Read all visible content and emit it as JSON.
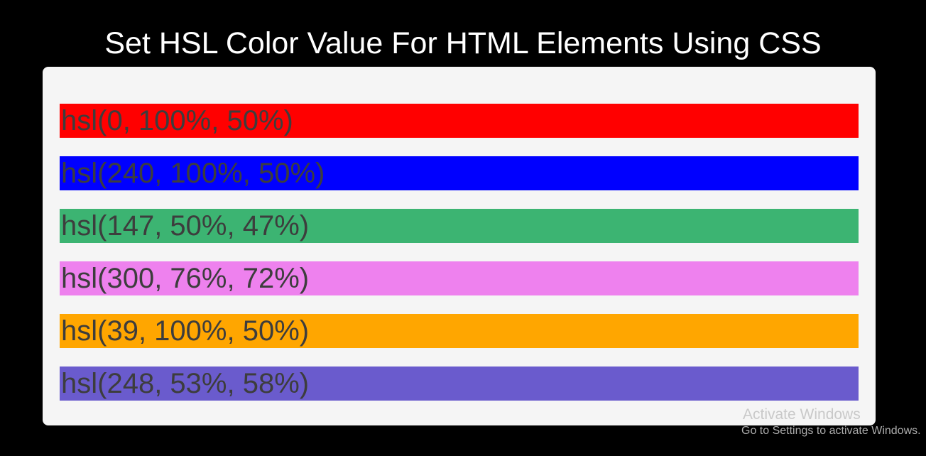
{
  "title": "Set HSL Color Value For HTML Elements Using CSS",
  "bars": [
    {
      "label": "hsl(0, 100%, 50%)",
      "color": "hsl(0, 100%, 50%)"
    },
    {
      "label": "hsl(240, 100%, 50%)",
      "color": "hsl(240, 100%, 50%)"
    },
    {
      "label": "hsl(147, 50%, 47%)",
      "color": "hsl(147, 50%, 47%)"
    },
    {
      "label": "hsl(300, 76%, 72%)",
      "color": "hsl(300, 76%, 72%)"
    },
    {
      "label": "hsl(39, 100%, 50%)",
      "color": "hsl(39, 100%, 50%)"
    },
    {
      "label": "hsl(248, 53%, 58%)",
      "color": "hsl(248, 53%, 58%)"
    }
  ],
  "watermark": {
    "line1": "Activate Windows",
    "line2": "Go to Settings to activate Windows."
  },
  "colors": {
    "page_background": "#000000",
    "card_background": "#f5f5f5",
    "title_text": "#ffffff",
    "bar_text": "#3d3d3d",
    "watermark_line1_text": "#c9c9c9",
    "watermark_line2_text": "#adadad"
  }
}
